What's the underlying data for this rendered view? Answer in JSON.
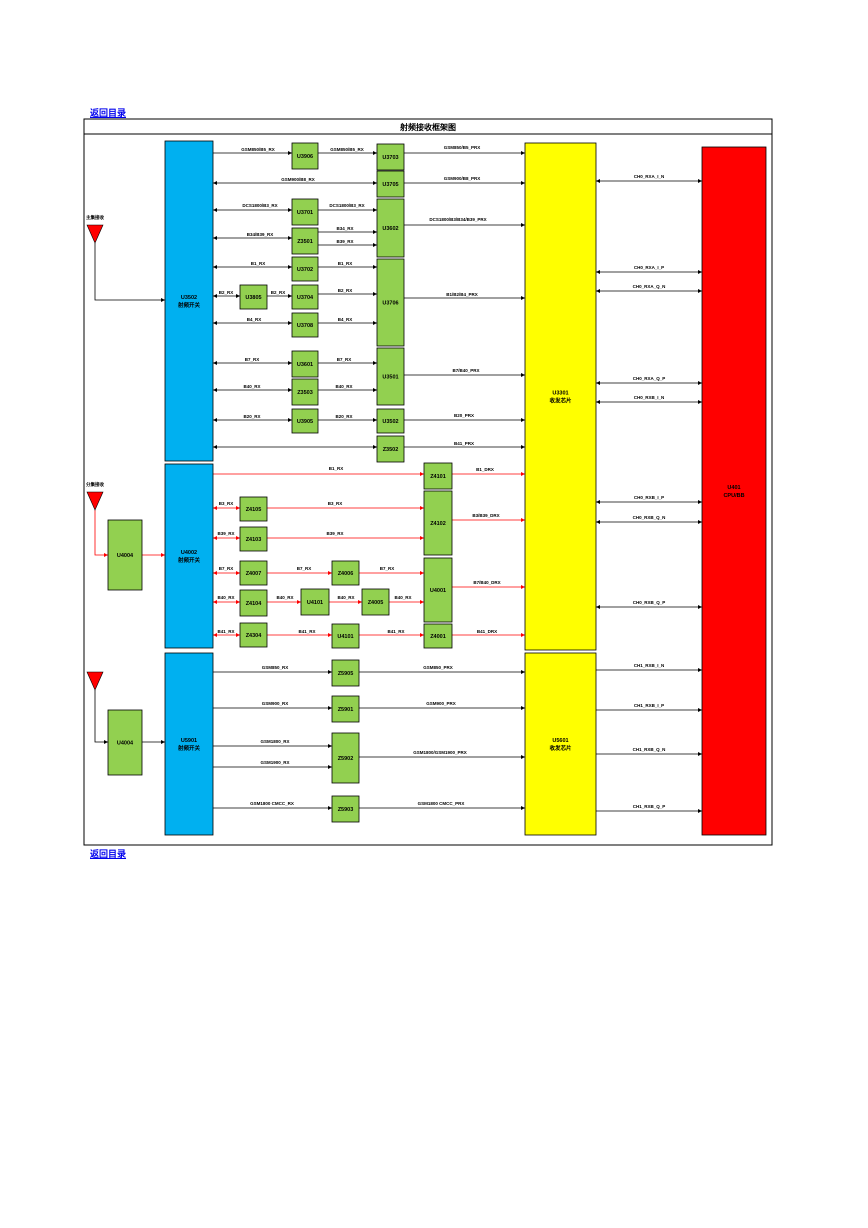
{
  "nav": {
    "back_top": "返回目录",
    "back_bottom": "返回目录"
  },
  "title": "射频接收框架图",
  "antennas": {
    "main_label": "主集接收",
    "div_label": "分集接收"
  },
  "blocks": {
    "switch1": [
      "U3502",
      "射频开关"
    ],
    "switch2": [
      "U4002",
      "射频开关"
    ],
    "switch3": [
      "U5901",
      "射频开关"
    ],
    "tx1": [
      "U3301",
      "收发芯片"
    ],
    "tx2": [
      "U5601",
      "收发芯片"
    ],
    "cpu": [
      "U401",
      "CPU/BB"
    ],
    "u4004a": "U4004",
    "u4004b": "U4004",
    "u3906": "U3906",
    "u3703": "U3703",
    "u3705": "U3705",
    "u3701": "U3701",
    "z3501": "Z3501",
    "u3602": "U3602",
    "u3702": "U3702",
    "u3805": "U3805",
    "u3704": "U3704",
    "u3706": "U3706",
    "u3708": "U3708",
    "u3601": "U3601",
    "u3501": "U3501",
    "z3503": "Z3503",
    "u3905": "U3905",
    "u3502": "U3502",
    "z3502": "Z3502",
    "z4101": "Z4101",
    "z4105": "Z4105",
    "z4102": "Z4102",
    "z4103": "Z4103",
    "z4007": "Z4007",
    "z4006": "Z4006",
    "u4001": "U4001",
    "z4104": "Z4104",
    "u4101": "U4101",
    "z4005": "Z4005",
    "z4304": "Z4304",
    "u4101b": "U4101",
    "z4001": "Z4001",
    "z5905": "Z5905",
    "z5901": "Z5901",
    "z5902": "Z5902",
    "z5903": "Z5903"
  },
  "signals": {
    "gsm850_b5_rx_a": "GSM850/B5_RX",
    "gsm850_b5_rx_b": "GSM850/B5_RX",
    "gsm850_b5_prx": "GSM850/B5_PRX",
    "gsm900_b8_rx": "GSM900/B8_RX",
    "gsm900_b8_prx": "GSM900/B8_PRX",
    "dcs1800_b3_rx_a": "DCS1800/B3_RX",
    "dcs1800_b3_rx_b": "DCS1800/B3_RX",
    "b34_b39_rx": "B34/B39_RX",
    "b34_rx": "B34_RX",
    "b39_rx": "B39_RX",
    "dcs_prx": "DCS1800/B3/B34/B39_PRX",
    "b1_rx_a": "B1_RX",
    "b1_rx_b": "B1_RX",
    "b2_rx_a": "B2_RX",
    "b2_rx_b": "B2_RX",
    "b2_rx_c": "B2_RX",
    "b4_rx_a": "B4_RX",
    "b4_rx_b": "B4_RX",
    "b1_b2_b4_prx": "B1/B2/B4_PRX",
    "b7_rx_a": "B7_RX",
    "b7_rx_b": "B7_RX",
    "b40_rx_a": "B40_RX",
    "b40_rx_b": "B40_RX",
    "b7_b40_prx": "B7/B40_PRX",
    "b20_rx_a": "B20_RX",
    "b20_rx_b": "B20_RX",
    "b20_prx": "B20_PRX",
    "b41_prx": "B41_PRX",
    "d_b1_rx": "B1_RX",
    "d_b1_drx": "B1_DRX",
    "d_b3_rx_a": "B3_RX",
    "d_b3_rx_b": "B3_RX",
    "d_b39_rx_a": "B39_RX",
    "d_b39_rx_b": "B39_RX",
    "d_b3_b39_drx": "B3/B39_DRX",
    "d_b7_rx_a": "B7_RX",
    "d_b7_rx_b": "B7_RX",
    "d_b7_rx_c": "B7_RX",
    "d_b40_rx_a": "B40_RX",
    "d_b40_rx_b": "B40_RX",
    "d_b40_rx_c": "B40_RX",
    "d_b7_b40_drx": "B7/B40_DRX",
    "d_b41_rx_a": "B41_RX",
    "d_b41_rx_b": "B41_RX",
    "d_b41_rx_c": "B41_RX",
    "d_b41_drx": "B41_DRX",
    "g_gsm850_rx": "GSM850_RX",
    "g_gsm850_prx": "GSM850_PRX",
    "g_gsm900_rx": "GSM900_RX",
    "g_gsm900_prx": "GSM900_PRX",
    "g_gsm1800_rx": "GSM1800_RX",
    "g_gsm1900_rx": "GSM1900_RX",
    "g_gsm1800_1900_prx": "GSM1800/GSM1900_PRX",
    "g_cmcc_rx": "GSM1800 CMCC_RX",
    "g_cmcc_prx": "GSM1800 CMCC_PRX",
    "ch0_rxa_i_n": "CH0_RXA_I_N",
    "ch0_rxa_i_p": "CH0_RXA_I_P",
    "ch0_rxa_q_n": "CH0_RXA_Q_N",
    "ch0_rxa_q_p": "CH0_RXA_Q_P",
    "ch0_rxb_i_n": "CH0_RXB_I_N",
    "ch0_rxb_i_p": "CH0_RXB_I_P",
    "ch0_rxb_q_n": "CH0_RXB_Q_N",
    "ch0_rxb_q_p": "CH0_RXB_Q_P",
    "ch1_rxb_i_n": "CH1_RXB_I_N",
    "ch1_rxb_i_p": "CH1_RXB_I_P",
    "ch1_rxb_q_n": "CH1_RXB_Q_N",
    "ch1_rxb_q_p": "CH1_RXB_Q_P"
  },
  "colors": {
    "switch": "#00b0f0",
    "filter": "#92d050",
    "transceiver": "#ffff00",
    "cpu": "#ff0000",
    "div_line": "#ff0000",
    "line": "#000000"
  }
}
